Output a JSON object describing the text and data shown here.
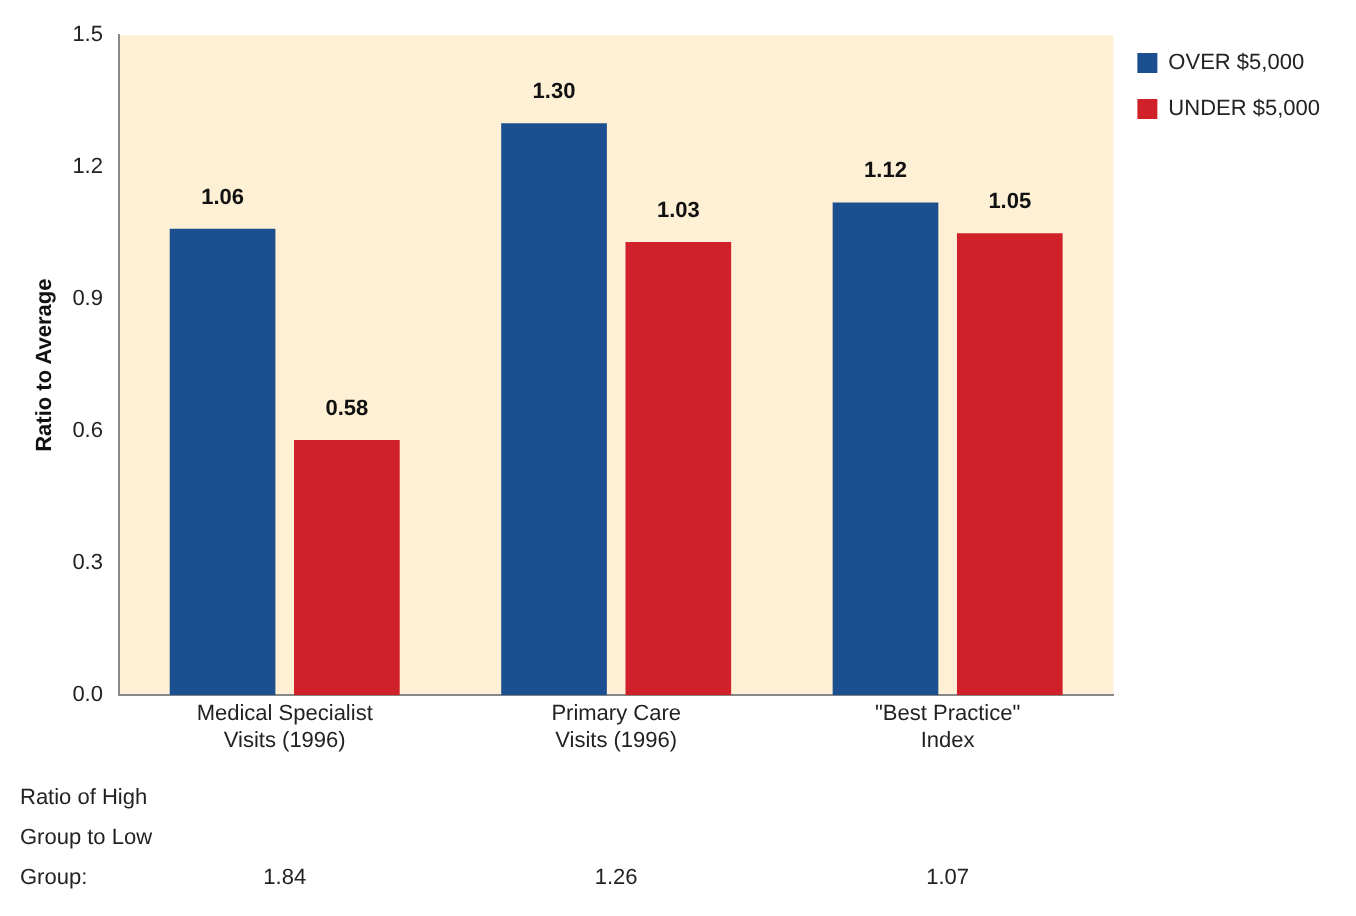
{
  "chart_data": {
    "type": "bar",
    "ylabel": "Ratio to Average",
    "categories": [
      "Medical Specialist Visits (1996)",
      "Primary Care Visits (1996)",
      "\"Best Practice\" Index"
    ],
    "series": [
      {
        "name": "OVER $5,000",
        "color": "#1c4f8f",
        "values": [
          1.06,
          1.3,
          1.12
        ],
        "value_labels": [
          "1.06",
          "1.30",
          "1.12"
        ]
      },
      {
        "name": "UNDER $5,000",
        "color": "#d0202a",
        "values": [
          0.58,
          1.03,
          1.05
        ],
        "value_labels": [
          "0.58",
          "1.03",
          "1.05"
        ]
      }
    ],
    "ylim": [
      0,
      1.5
    ],
    "yticks": [
      {
        "value": 0,
        "label": "0.0"
      },
      0.3,
      0.6,
      0.9,
      1.2,
      1.5
    ],
    "grid": false,
    "legend": "top right",
    "annotations": [
      "Ratio of High Group to Low Group:",
      "1.84",
      "1.26",
      "1.07"
    ]
  }
}
